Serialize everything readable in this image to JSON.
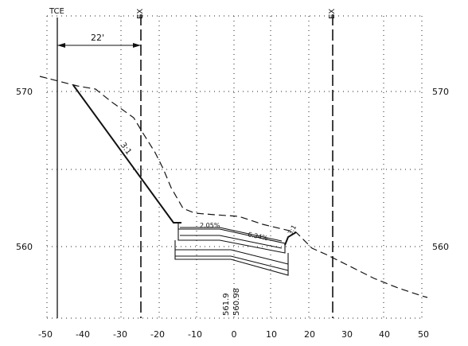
{
  "x_axis": {
    "ticks": [
      "-50",
      "-40",
      "-30",
      "-20",
      "-10",
      "0",
      "10",
      "20",
      "30",
      "40",
      "50"
    ]
  },
  "y_axis": {
    "left_ticks": [
      "570",
      "560"
    ],
    "right_ticks": [
      "570",
      "560"
    ]
  },
  "labels": {
    "tce": "TCE",
    "ex_left": "EX",
    "ex_right": "EX",
    "dimension": "22'",
    "slope_main": "3:1",
    "slope_right": "3:1",
    "cross_slope_left": "2.05%",
    "cross_slope_right": "6.34%",
    "elevation_1": "561.9",
    "elevation_2": "560.98"
  }
}
